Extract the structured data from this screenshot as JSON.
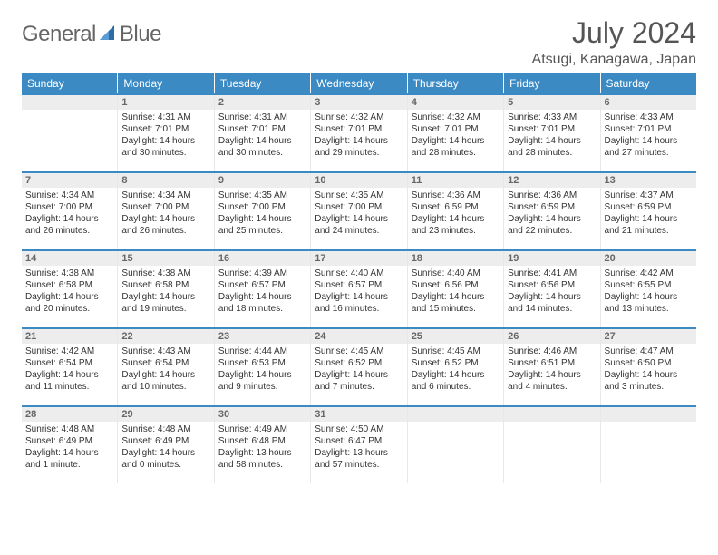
{
  "brand": {
    "text_left": "General",
    "text_right": "Blue"
  },
  "header": {
    "month_title": "July 2024",
    "location": "Atsugi, Kanagawa, Japan"
  },
  "colors": {
    "header_bg": "#3b8ac4",
    "header_text": "#ffffff",
    "daynum_bg": "#ededed",
    "daynum_text": "#676767",
    "rule": "#3b8ac4"
  },
  "weekdays": [
    "Sunday",
    "Monday",
    "Tuesday",
    "Wednesday",
    "Thursday",
    "Friday",
    "Saturday"
  ],
  "weeks": [
    [
      {
        "n": "",
        "sunrise": "",
        "sunset": "",
        "daylight": ""
      },
      {
        "n": "1",
        "sunrise": "Sunrise: 4:31 AM",
        "sunset": "Sunset: 7:01 PM",
        "daylight": "Daylight: 14 hours and 30 minutes."
      },
      {
        "n": "2",
        "sunrise": "Sunrise: 4:31 AM",
        "sunset": "Sunset: 7:01 PM",
        "daylight": "Daylight: 14 hours and 30 minutes."
      },
      {
        "n": "3",
        "sunrise": "Sunrise: 4:32 AM",
        "sunset": "Sunset: 7:01 PM",
        "daylight": "Daylight: 14 hours and 29 minutes."
      },
      {
        "n": "4",
        "sunrise": "Sunrise: 4:32 AM",
        "sunset": "Sunset: 7:01 PM",
        "daylight": "Daylight: 14 hours and 28 minutes."
      },
      {
        "n": "5",
        "sunrise": "Sunrise: 4:33 AM",
        "sunset": "Sunset: 7:01 PM",
        "daylight": "Daylight: 14 hours and 28 minutes."
      },
      {
        "n": "6",
        "sunrise": "Sunrise: 4:33 AM",
        "sunset": "Sunset: 7:01 PM",
        "daylight": "Daylight: 14 hours and 27 minutes."
      }
    ],
    [
      {
        "n": "7",
        "sunrise": "Sunrise: 4:34 AM",
        "sunset": "Sunset: 7:00 PM",
        "daylight": "Daylight: 14 hours and 26 minutes."
      },
      {
        "n": "8",
        "sunrise": "Sunrise: 4:34 AM",
        "sunset": "Sunset: 7:00 PM",
        "daylight": "Daylight: 14 hours and 26 minutes."
      },
      {
        "n": "9",
        "sunrise": "Sunrise: 4:35 AM",
        "sunset": "Sunset: 7:00 PM",
        "daylight": "Daylight: 14 hours and 25 minutes."
      },
      {
        "n": "10",
        "sunrise": "Sunrise: 4:35 AM",
        "sunset": "Sunset: 7:00 PM",
        "daylight": "Daylight: 14 hours and 24 minutes."
      },
      {
        "n": "11",
        "sunrise": "Sunrise: 4:36 AM",
        "sunset": "Sunset: 6:59 PM",
        "daylight": "Daylight: 14 hours and 23 minutes."
      },
      {
        "n": "12",
        "sunrise": "Sunrise: 4:36 AM",
        "sunset": "Sunset: 6:59 PM",
        "daylight": "Daylight: 14 hours and 22 minutes."
      },
      {
        "n": "13",
        "sunrise": "Sunrise: 4:37 AM",
        "sunset": "Sunset: 6:59 PM",
        "daylight": "Daylight: 14 hours and 21 minutes."
      }
    ],
    [
      {
        "n": "14",
        "sunrise": "Sunrise: 4:38 AM",
        "sunset": "Sunset: 6:58 PM",
        "daylight": "Daylight: 14 hours and 20 minutes."
      },
      {
        "n": "15",
        "sunrise": "Sunrise: 4:38 AM",
        "sunset": "Sunset: 6:58 PM",
        "daylight": "Daylight: 14 hours and 19 minutes."
      },
      {
        "n": "16",
        "sunrise": "Sunrise: 4:39 AM",
        "sunset": "Sunset: 6:57 PM",
        "daylight": "Daylight: 14 hours and 18 minutes."
      },
      {
        "n": "17",
        "sunrise": "Sunrise: 4:40 AM",
        "sunset": "Sunset: 6:57 PM",
        "daylight": "Daylight: 14 hours and 16 minutes."
      },
      {
        "n": "18",
        "sunrise": "Sunrise: 4:40 AM",
        "sunset": "Sunset: 6:56 PM",
        "daylight": "Daylight: 14 hours and 15 minutes."
      },
      {
        "n": "19",
        "sunrise": "Sunrise: 4:41 AM",
        "sunset": "Sunset: 6:56 PM",
        "daylight": "Daylight: 14 hours and 14 minutes."
      },
      {
        "n": "20",
        "sunrise": "Sunrise: 4:42 AM",
        "sunset": "Sunset: 6:55 PM",
        "daylight": "Daylight: 14 hours and 13 minutes."
      }
    ],
    [
      {
        "n": "21",
        "sunrise": "Sunrise: 4:42 AM",
        "sunset": "Sunset: 6:54 PM",
        "daylight": "Daylight: 14 hours and 11 minutes."
      },
      {
        "n": "22",
        "sunrise": "Sunrise: 4:43 AM",
        "sunset": "Sunset: 6:54 PM",
        "daylight": "Daylight: 14 hours and 10 minutes."
      },
      {
        "n": "23",
        "sunrise": "Sunrise: 4:44 AM",
        "sunset": "Sunset: 6:53 PM",
        "daylight": "Daylight: 14 hours and 9 minutes."
      },
      {
        "n": "24",
        "sunrise": "Sunrise: 4:45 AM",
        "sunset": "Sunset: 6:52 PM",
        "daylight": "Daylight: 14 hours and 7 minutes."
      },
      {
        "n": "25",
        "sunrise": "Sunrise: 4:45 AM",
        "sunset": "Sunset: 6:52 PM",
        "daylight": "Daylight: 14 hours and 6 minutes."
      },
      {
        "n": "26",
        "sunrise": "Sunrise: 4:46 AM",
        "sunset": "Sunset: 6:51 PM",
        "daylight": "Daylight: 14 hours and 4 minutes."
      },
      {
        "n": "27",
        "sunrise": "Sunrise: 4:47 AM",
        "sunset": "Sunset: 6:50 PM",
        "daylight": "Daylight: 14 hours and 3 minutes."
      }
    ],
    [
      {
        "n": "28",
        "sunrise": "Sunrise: 4:48 AM",
        "sunset": "Sunset: 6:49 PM",
        "daylight": "Daylight: 14 hours and 1 minute."
      },
      {
        "n": "29",
        "sunrise": "Sunrise: 4:48 AM",
        "sunset": "Sunset: 6:49 PM",
        "daylight": "Daylight: 14 hours and 0 minutes."
      },
      {
        "n": "30",
        "sunrise": "Sunrise: 4:49 AM",
        "sunset": "Sunset: 6:48 PM",
        "daylight": "Daylight: 13 hours and 58 minutes."
      },
      {
        "n": "31",
        "sunrise": "Sunrise: 4:50 AM",
        "sunset": "Sunset: 6:47 PM",
        "daylight": "Daylight: 13 hours and 57 minutes."
      },
      {
        "n": "",
        "sunrise": "",
        "sunset": "",
        "daylight": ""
      },
      {
        "n": "",
        "sunrise": "",
        "sunset": "",
        "daylight": ""
      },
      {
        "n": "",
        "sunrise": "",
        "sunset": "",
        "daylight": ""
      }
    ]
  ]
}
